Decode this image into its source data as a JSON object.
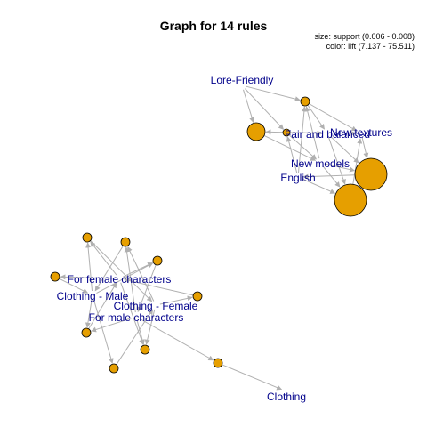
{
  "title": "Graph for 14 rules",
  "legend": {
    "size": "size: support (0.006 - 0.008)",
    "color": "color: lift (7.137 - 75.511)"
  },
  "colors": {
    "node_fill": "#e69f00",
    "node_stroke": "#000000",
    "edge": "#b0b0b0",
    "label": "#00008b"
  },
  "item_labels": [
    {
      "id": "lore-friendly",
      "text": "Lore-Friendly"
    },
    {
      "id": "fair-and-balanced",
      "text": "Fair and balanced"
    },
    {
      "id": "new-textures",
      "text": "New textures"
    },
    {
      "id": "new-models",
      "text": "New models"
    },
    {
      "id": "english",
      "text": "English"
    },
    {
      "id": "for-female-characters",
      "text": "For female characters"
    },
    {
      "id": "clothing-male",
      "text": "Clothing - Male"
    },
    {
      "id": "clothing-female",
      "text": "Clothing - Female"
    },
    {
      "id": "for-male-characters",
      "text": "For male characters"
    },
    {
      "id": "clothing",
      "text": "Clothing"
    }
  ]
}
